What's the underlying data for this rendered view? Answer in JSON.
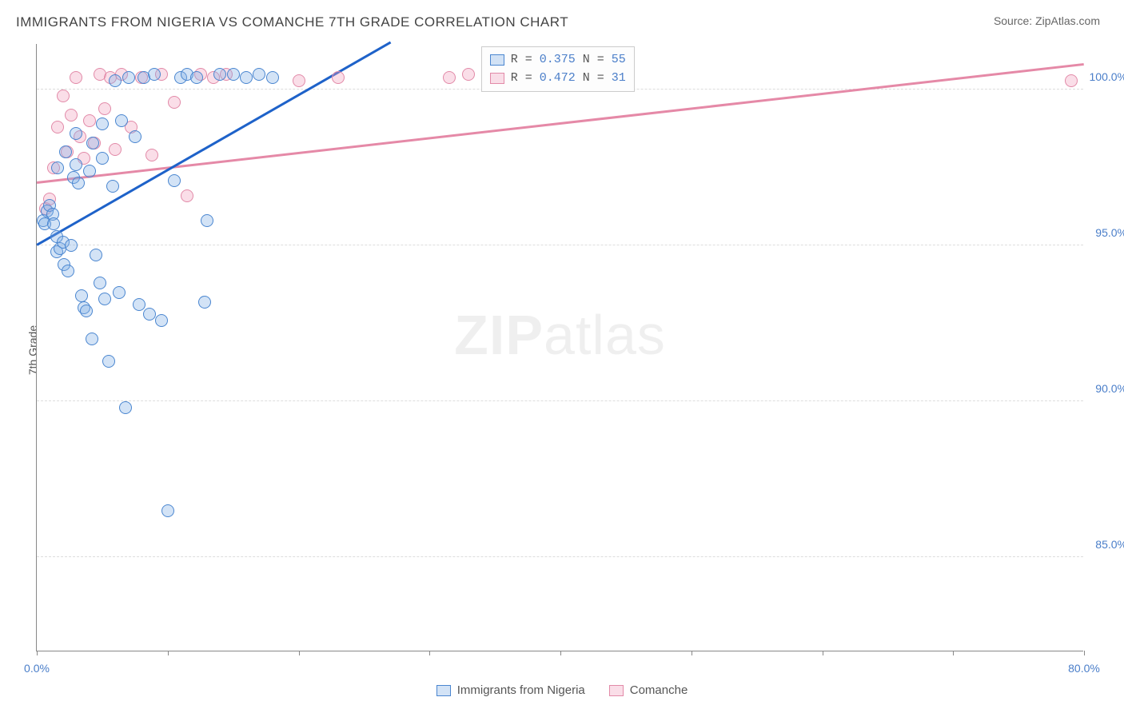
{
  "title": "IMMIGRANTS FROM NIGERIA VS COMANCHE 7TH GRADE CORRELATION CHART",
  "source": "Source: ZipAtlas.com",
  "ylabel": "7th Grade",
  "watermark_bold": "ZIP",
  "watermark_light": "atlas",
  "colors": {
    "series_a_fill": "rgba(130,175,230,0.35)",
    "series_a_stroke": "#4a86d0",
    "series_b_fill": "rgba(240,160,190,0.35)",
    "series_b_stroke": "#e28aa8",
    "trend_a": "#1e62c9",
    "trend_b": "#e589a7",
    "value_text": "#4a7ec9"
  },
  "axes": {
    "xlim": [
      0,
      80
    ],
    "ylim": [
      82,
      101.5
    ],
    "xticks": [
      0,
      10,
      20,
      30,
      40,
      50,
      60,
      70,
      80
    ],
    "xtick_labels": {
      "0": "0.0%",
      "80": "80.0%"
    },
    "yticks": [
      85,
      90,
      95,
      100
    ],
    "ytick_labels": {
      "85": "85.0%",
      "90": "90.0%",
      "95": "95.0%",
      "100": "100.0%"
    }
  },
  "marker_radius": 8,
  "legend_top": {
    "rows": [
      {
        "swatch": "a",
        "r_label": "R = ",
        "r_val": "0.375",
        "n_label": "  N = ",
        "n_val": "55"
      },
      {
        "swatch": "b",
        "r_label": "R = ",
        "r_val": "0.472",
        "n_label": "  N = ",
        "n_val": "31"
      }
    ]
  },
  "legend_bottom": [
    {
      "swatch": "a",
      "label": "Immigrants from Nigeria"
    },
    {
      "swatch": "b",
      "label": "Comanche"
    }
  ],
  "trend_lines": {
    "a": {
      "x1": 0,
      "y1": 95.0,
      "x2": 27,
      "y2": 101.5
    },
    "b": {
      "x1": 0,
      "y1": 97.0,
      "x2": 80,
      "y2": 100.8
    }
  },
  "series_a": [
    [
      0.5,
      95.8
    ],
    [
      0.6,
      95.7
    ],
    [
      0.8,
      96.1
    ],
    [
      1.0,
      96.3
    ],
    [
      1.2,
      96.0
    ],
    [
      1.3,
      95.7
    ],
    [
      1.5,
      95.3
    ],
    [
      1.5,
      94.8
    ],
    [
      1.8,
      94.9
    ],
    [
      2.0,
      95.1
    ],
    [
      2.1,
      94.4
    ],
    [
      2.4,
      94.2
    ],
    [
      2.6,
      95.0
    ],
    [
      2.8,
      97.2
    ],
    [
      3.0,
      97.6
    ],
    [
      3.2,
      97.0
    ],
    [
      3.4,
      93.4
    ],
    [
      3.6,
      93.0
    ],
    [
      3.8,
      92.9
    ],
    [
      4.0,
      97.4
    ],
    [
      4.2,
      92.0
    ],
    [
      4.5,
      94.7
    ],
    [
      4.8,
      93.8
    ],
    [
      5.0,
      97.8
    ],
    [
      5.2,
      93.3
    ],
    [
      5.5,
      91.3
    ],
    [
      5.8,
      96.9
    ],
    [
      6.0,
      100.3
    ],
    [
      6.3,
      93.5
    ],
    [
      6.5,
      99.0
    ],
    [
      6.8,
      89.8
    ],
    [
      7.0,
      100.4
    ],
    [
      7.8,
      93.1
    ],
    [
      8.2,
      100.4
    ],
    [
      8.6,
      92.8
    ],
    [
      9.0,
      100.5
    ],
    [
      9.5,
      92.6
    ],
    [
      10.0,
      86.5
    ],
    [
      10.5,
      97.1
    ],
    [
      11.0,
      100.4
    ],
    [
      11.5,
      100.5
    ],
    [
      12.2,
      100.4
    ],
    [
      13.0,
      95.8
    ],
    [
      14.0,
      100.5
    ],
    [
      15.0,
      100.5
    ],
    [
      16.0,
      100.4
    ],
    [
      17.0,
      100.5
    ],
    [
      18.0,
      100.4
    ],
    [
      7.5,
      98.5
    ],
    [
      5.0,
      98.9
    ],
    [
      4.3,
      98.3
    ],
    [
      3.0,
      98.6
    ],
    [
      2.2,
      98.0
    ],
    [
      1.6,
      97.5
    ],
    [
      12.8,
      93.2
    ]
  ],
  "series_b": [
    [
      0.7,
      96.2
    ],
    [
      1.0,
      96.5
    ],
    [
      1.3,
      97.5
    ],
    [
      1.6,
      98.8
    ],
    [
      2.0,
      99.8
    ],
    [
      2.3,
      98.0
    ],
    [
      2.6,
      99.2
    ],
    [
      3.0,
      100.4
    ],
    [
      3.3,
      98.5
    ],
    [
      3.6,
      97.8
    ],
    [
      4.0,
      99.0
    ],
    [
      4.4,
      98.3
    ],
    [
      4.8,
      100.5
    ],
    [
      5.2,
      99.4
    ],
    [
      5.6,
      100.4
    ],
    [
      6.0,
      98.1
    ],
    [
      6.5,
      100.5
    ],
    [
      7.2,
      98.8
    ],
    [
      8.0,
      100.4
    ],
    [
      8.8,
      97.9
    ],
    [
      9.5,
      100.5
    ],
    [
      10.5,
      99.6
    ],
    [
      11.5,
      96.6
    ],
    [
      12.5,
      100.5
    ],
    [
      13.5,
      100.4
    ],
    [
      14.5,
      100.5
    ],
    [
      20.0,
      100.3
    ],
    [
      23.0,
      100.4
    ],
    [
      31.5,
      100.4
    ],
    [
      33.0,
      100.5
    ],
    [
      79.0,
      100.3
    ]
  ]
}
